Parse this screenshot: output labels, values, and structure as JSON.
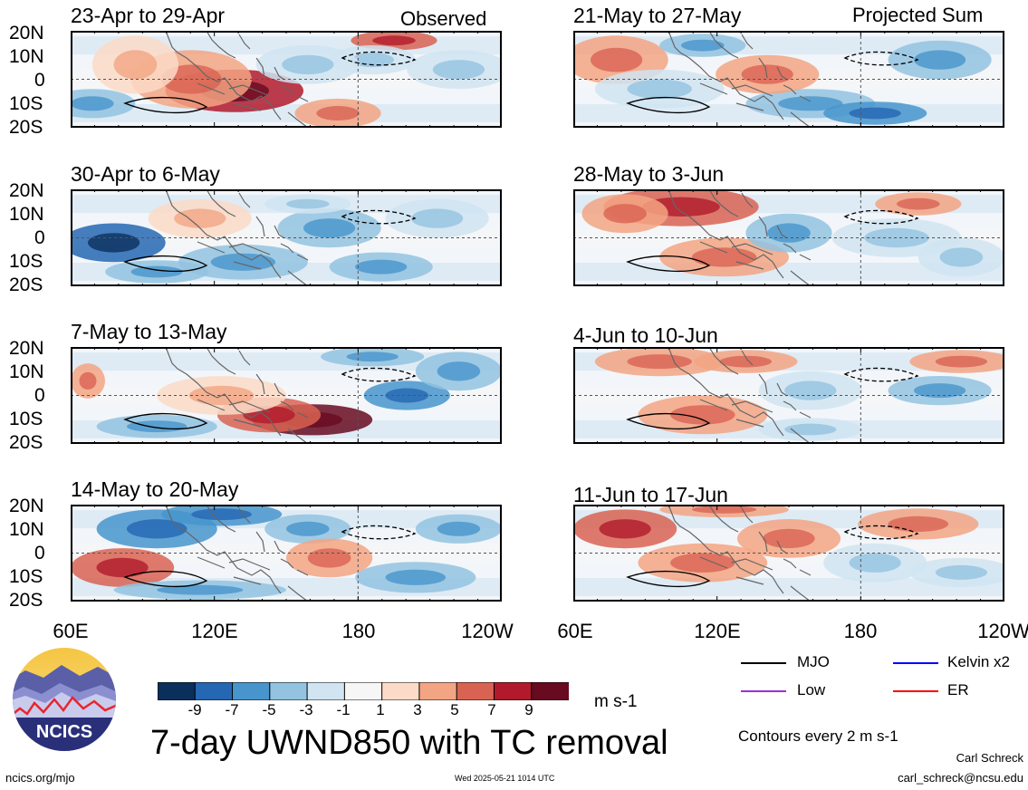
{
  "header": {
    "left_label": "Observed",
    "right_label": "Projected Sum"
  },
  "panels": [
    {
      "title": "23-Apr to 29-Apr",
      "column": "observed"
    },
    {
      "title": "30-Apr to 6-May",
      "column": "observed"
    },
    {
      "title": "7-May to 13-May",
      "column": "observed"
    },
    {
      "title": "14-May to 20-May",
      "column": "observed"
    },
    {
      "title": "21-May to 27-May",
      "column": "projected"
    },
    {
      "title": "28-May to 3-Jun",
      "column": "projected"
    },
    {
      "title": "4-Jun to 10-Jun",
      "column": "projected"
    },
    {
      "title": "11-Jun to 17-Jun",
      "column": "projected"
    }
  ],
  "latitude_ticks": [
    "20N",
    "10N",
    "0",
    "10S",
    "20S"
  ],
  "longitude_ticks": [
    "60E",
    "120E",
    "180",
    "120W"
  ],
  "colorbar": {
    "colors": [
      "#0b2f5b",
      "#2667b3",
      "#4795cc",
      "#93c3e0",
      "#d0e4f1",
      "#f6f6f6",
      "#fbdbc7",
      "#f3a583",
      "#d96352",
      "#b01a2c",
      "#680a20"
    ],
    "labels": [
      "-9",
      "-7",
      "-5",
      "-3",
      "-1",
      "1",
      "3",
      "5",
      "7",
      "9"
    ],
    "units": "m s-1"
  },
  "main_title": "7-day UWND850 with TC removal",
  "legend": {
    "items": [
      {
        "label": "MJO",
        "color": "#000000"
      },
      {
        "label": "Kelvin x2",
        "color": "#0000ff"
      },
      {
        "label": "Low",
        "color": "#9b30d9"
      },
      {
        "label": "ER",
        "color": "#ff0000"
      }
    ],
    "contour_note": "Contours every 2 m s-1"
  },
  "credits": {
    "logo_text": "NCICS",
    "url": "ncics.org/mjo",
    "timestamp": "Wed 2025-05-21 1014 UTC",
    "author": "Carl Schreck",
    "email": "carl_schreck@ncsu.edu"
  }
}
